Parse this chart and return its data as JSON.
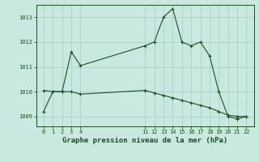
{
  "title": "Graphe pression niveau de la mer (hPa)",
  "bg_color": "#c8e8e0",
  "grid_color": "#a8ccc4",
  "line_color": "#1a5020",
  "ylim": [
    1008.6,
    1013.5
  ],
  "yticks": [
    1009,
    1010,
    1011,
    1012,
    1013
  ],
  "xticks": [
    0,
    1,
    2,
    3,
    4,
    11,
    12,
    13,
    14,
    15,
    16,
    17,
    18,
    19,
    20,
    21,
    22
  ],
  "line1_x": [
    0,
    1,
    2,
    3,
    4,
    11,
    12,
    13,
    14,
    15,
    16,
    17,
    18,
    19,
    20,
    21,
    22
  ],
  "line1_y": [
    1009.2,
    1010.0,
    1010.0,
    1011.6,
    1011.05,
    1011.85,
    1012.0,
    1013.0,
    1013.35,
    1012.0,
    1011.85,
    1012.0,
    1011.45,
    1010.0,
    1009.0,
    1008.9,
    1009.0
  ],
  "line2_x": [
    0,
    1,
    2,
    3,
    4,
    11,
    12,
    13,
    14,
    15,
    16,
    17,
    18,
    19,
    20,
    21,
    22
  ],
  "line2_y": [
    1010.05,
    1010.0,
    1010.0,
    1010.0,
    1009.9,
    1010.05,
    1009.95,
    1009.85,
    1009.75,
    1009.65,
    1009.55,
    1009.45,
    1009.35,
    1009.2,
    1009.05,
    1009.0,
    1009.0
  ],
  "title_fontsize": 6.5,
  "tick_fontsize": 5.0
}
